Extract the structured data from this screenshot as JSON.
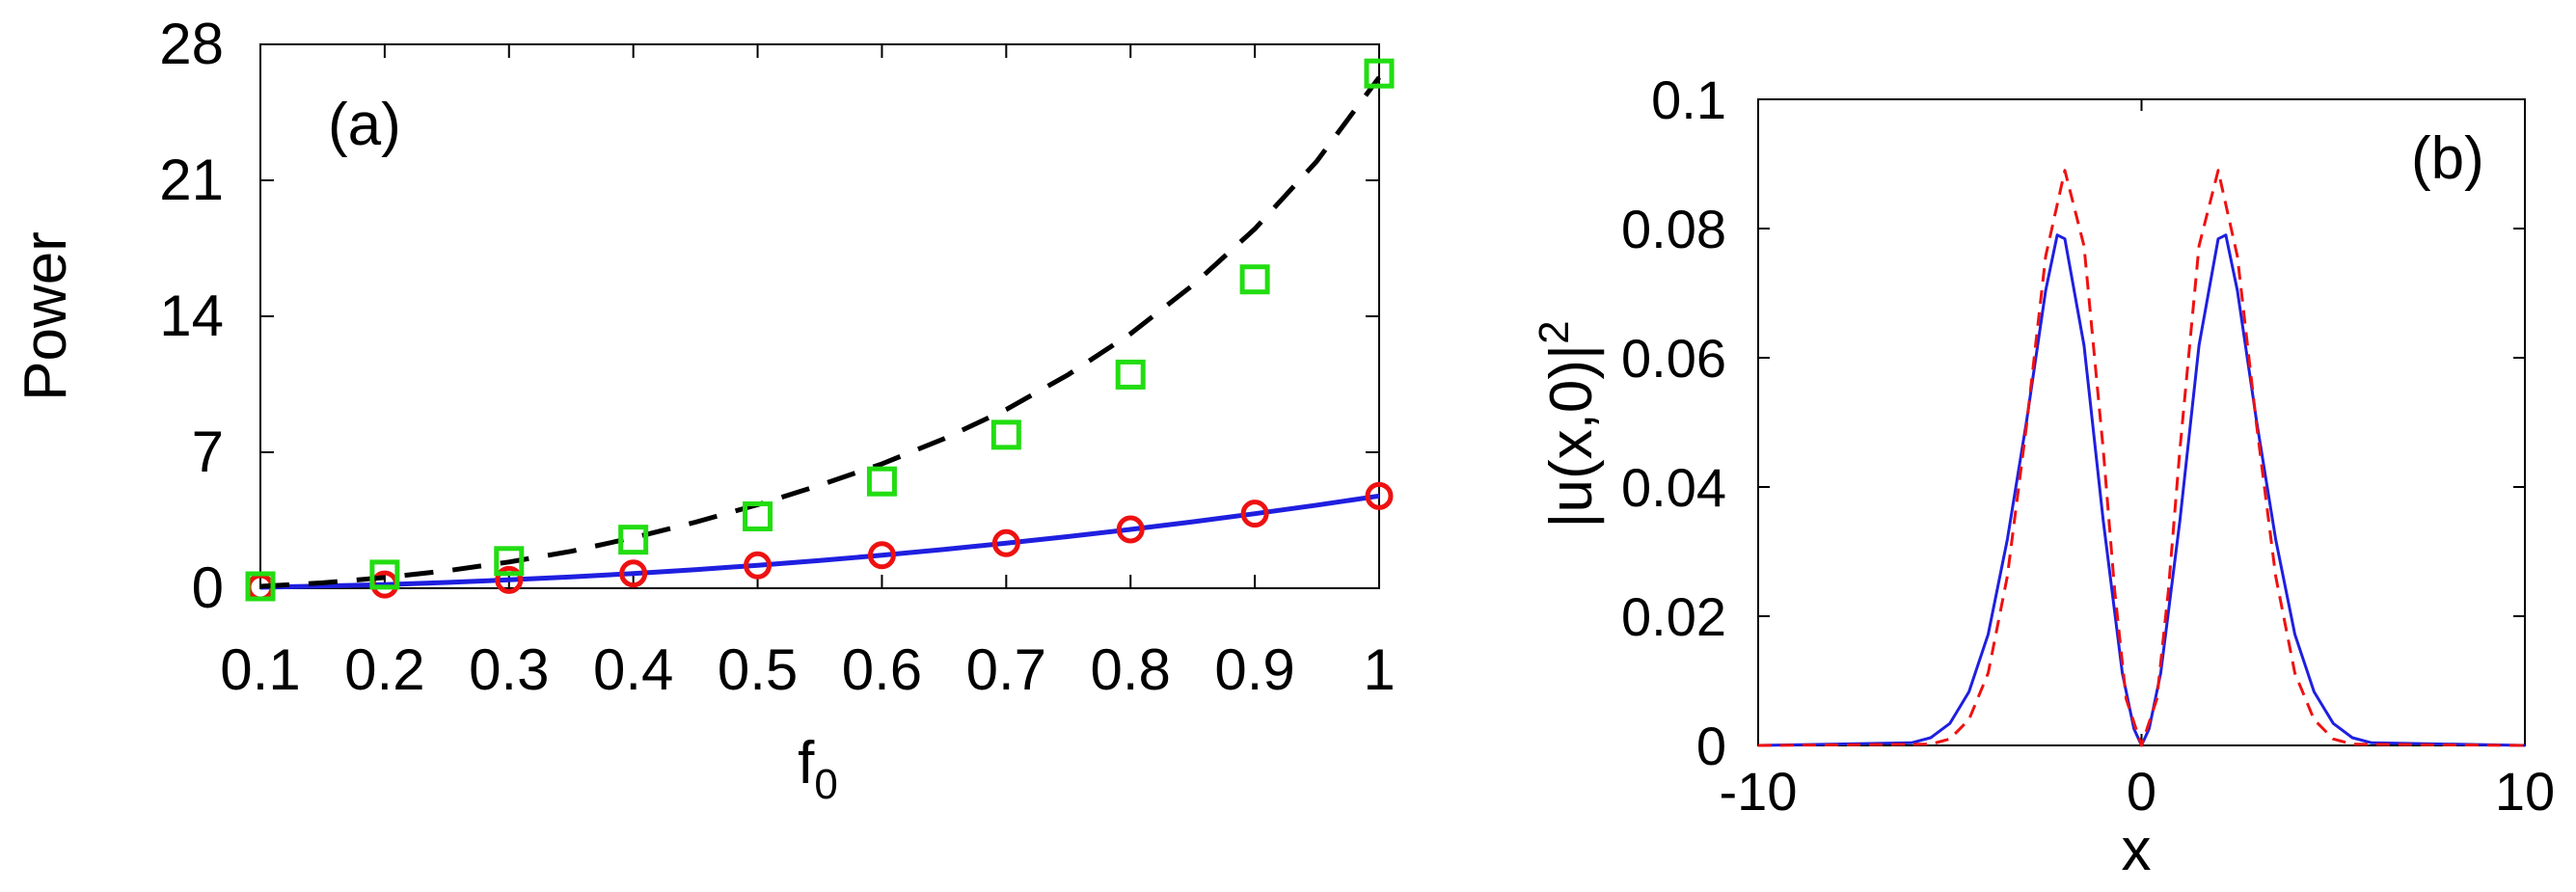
{
  "chart_data": [
    {
      "id": "a",
      "type": "line",
      "panel_label": "(a)",
      "xlabel": "f",
      "xlabel_sub": "0",
      "ylabel": "Power",
      "xlim": [
        0.1,
        1.0
      ],
      "ylim": [
        0,
        28
      ],
      "xticks": [
        0.1,
        0.2,
        0.3,
        0.4,
        0.5,
        0.6,
        0.7,
        0.8,
        0.9,
        1.0
      ],
      "xtick_labels": [
        "0.1",
        "0.2",
        "0.3",
        "0.4",
        "0.5",
        "0.6",
        "0.7",
        "0.8",
        "0.9",
        "1"
      ],
      "yticks": [
        0,
        7,
        14,
        21,
        28
      ],
      "ytick_labels": [
        "0",
        "7",
        "14",
        "21",
        "28"
      ],
      "grid": false,
      "series": [
        {
          "style": "solid-line",
          "color": "#1f1fe0",
          "x": [
            0.1,
            0.15,
            0.2,
            0.25,
            0.3,
            0.35,
            0.4,
            0.45,
            0.5,
            0.55,
            0.6,
            0.65,
            0.7,
            0.75,
            0.8,
            0.85,
            0.9,
            0.95,
            1.0
          ],
          "y": [
            0.05,
            0.11,
            0.19,
            0.3,
            0.43,
            0.58,
            0.76,
            0.96,
            1.18,
            1.43,
            1.7,
            2.0,
            2.32,
            2.66,
            3.03,
            3.42,
            3.84,
            4.28,
            4.75
          ]
        },
        {
          "style": "circle-markers",
          "color": "#ee1111",
          "x": [
            0.1,
            0.2,
            0.3,
            0.4,
            0.5,
            0.6,
            0.7,
            0.8,
            0.9,
            1.0
          ],
          "y": [
            0.05,
            0.19,
            0.43,
            0.76,
            1.18,
            1.7,
            2.32,
            3.03,
            3.84,
            4.75
          ]
        },
        {
          "style": "dashed-line",
          "color": "#000000",
          "x": [
            0.1,
            0.15,
            0.2,
            0.25,
            0.3,
            0.35,
            0.4,
            0.45,
            0.5,
            0.55,
            0.6,
            0.65,
            0.7,
            0.75,
            0.8,
            0.85,
            0.9,
            0.95,
            1.0
          ],
          "y": [
            0.1,
            0.28,
            0.55,
            0.9,
            1.35,
            1.9,
            2.6,
            3.4,
            4.3,
            5.3,
            6.4,
            7.7,
            9.2,
            11.0,
            13.1,
            15.6,
            18.5,
            22.0,
            26.3
          ]
        },
        {
          "style": "square-markers",
          "color": "#22dd11",
          "x": [
            0.1,
            0.2,
            0.3,
            0.4,
            0.5,
            0.6,
            0.7,
            0.8,
            0.9,
            1.0
          ],
          "y": [
            0.1,
            0.7,
            1.4,
            2.5,
            3.7,
            5.5,
            7.9,
            11.0,
            15.9,
            26.5
          ]
        }
      ]
    },
    {
      "id": "b",
      "type": "line",
      "panel_label": "(b)",
      "xlabel": "x",
      "ylabel": "|u(x,0)|",
      "ylabel_sup": "2",
      "xlim": [
        -10,
        10
      ],
      "ylim": [
        0,
        0.1
      ],
      "xticks": [
        -10,
        0,
        10
      ],
      "xtick_labels": [
        "-10",
        "0",
        "10"
      ],
      "yticks": [
        0,
        0.02,
        0.04,
        0.06,
        0.08,
        0.1
      ],
      "ytick_labels": [
        "0",
        "0.02",
        "0.04",
        "0.06",
        "0.08",
        "0.1"
      ],
      "grid": false,
      "series": [
        {
          "style": "solid-line",
          "color": "#1f1fe0",
          "x": [
            -10,
            -6,
            -5.5,
            -5,
            -4.5,
            -4,
            -3.5,
            -3,
            -2.5,
            -2.2,
            -2,
            -1.5,
            -1,
            -0.5,
            -0.2,
            0,
            0.2,
            0.5,
            1,
            1.5,
            2,
            2.2,
            2.5,
            3,
            3.5,
            4,
            4.5,
            5,
            5.5,
            6,
            10
          ],
          "y": [
            0,
            0.0004,
            0.0012,
            0.0034,
            0.0083,
            0.0172,
            0.0319,
            0.0502,
            0.0704,
            0.079,
            0.0784,
            0.0619,
            0.0348,
            0.0112,
            0.0026,
            0,
            0.0026,
            0.0112,
            0.0348,
            0.0619,
            0.0784,
            0.079,
            0.0704,
            0.0502,
            0.0319,
            0.0172,
            0.0083,
            0.0034,
            0.0012,
            0.0004,
            0
          ]
        },
        {
          "style": "dashed-line",
          "color": "#ee1111",
          "x": [
            -10,
            -5.5,
            -5,
            -4.5,
            -4,
            -3.5,
            -3,
            -2.5,
            -2,
            -1.5,
            -1,
            -0.7,
            -0.4,
            0,
            0.4,
            0.7,
            1,
            1.5,
            2,
            2.5,
            3,
            3.5,
            4,
            4.5,
            5,
            5.5,
            10
          ],
          "y": [
            0,
            0.0002,
            0.001,
            0.004,
            0.0112,
            0.0262,
            0.0496,
            0.0757,
            0.089,
            0.0773,
            0.0458,
            0.0239,
            0.0072,
            0,
            0.0072,
            0.0239,
            0.0458,
            0.0773,
            0.089,
            0.0757,
            0.0496,
            0.0262,
            0.0112,
            0.004,
            0.001,
            0.0002,
            0
          ]
        }
      ]
    }
  ]
}
